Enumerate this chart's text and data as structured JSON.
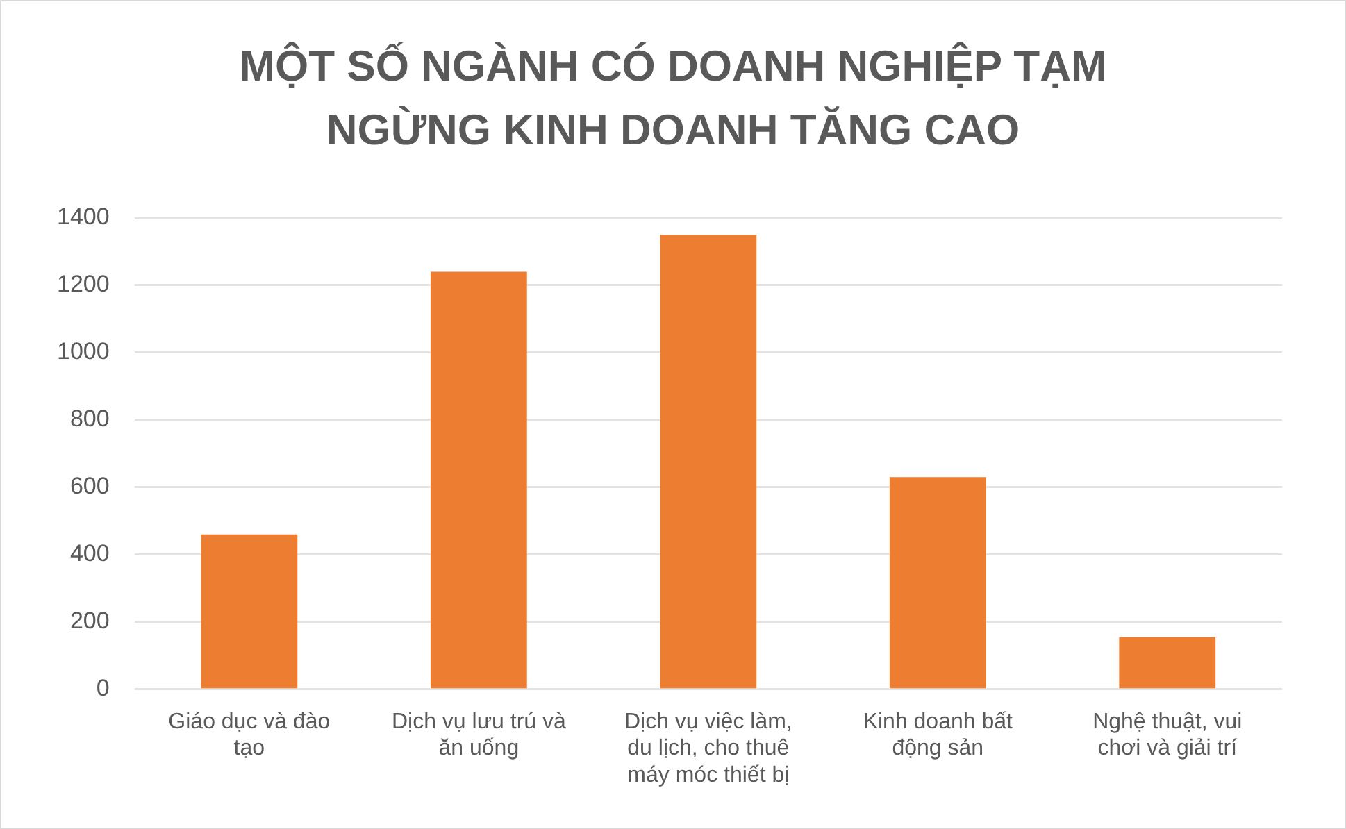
{
  "chart_data": {
    "type": "bar",
    "title": "MỘT SỐ NGÀNH CÓ DOANH NGHIỆP TẠM NGỪNG KINH DOANH TĂNG CAO",
    "categories": [
      "Giáo dục và đào tạo",
      "Dịch vụ lưu trú và ăn uống",
      "Dịch vụ việc làm, du lịch, cho thuê máy móc thiết bị",
      "Kinh doanh bất động sản",
      "Nghệ thuật, vui chơi và giải trí"
    ],
    "values": [
      460,
      1240,
      1350,
      630,
      155
    ],
    "color": "#ed7d31",
    "ylim": [
      0,
      1400
    ],
    "yticks": [
      0,
      200,
      400,
      600,
      800,
      1000,
      1200,
      1400
    ],
    "grid": "y"
  }
}
